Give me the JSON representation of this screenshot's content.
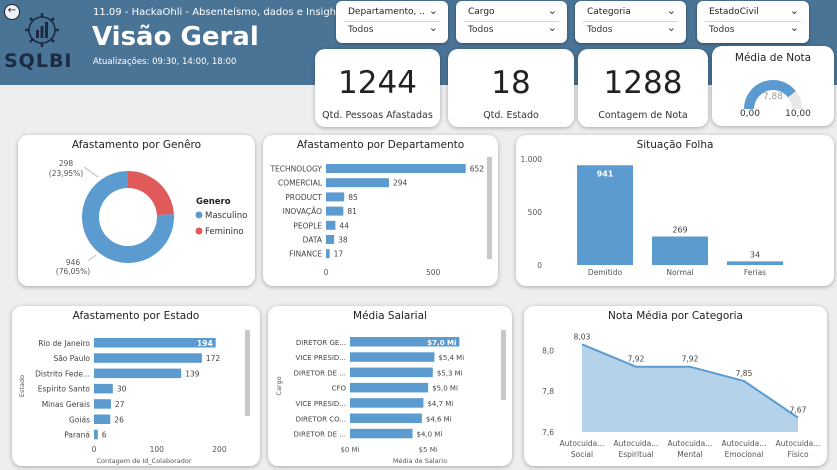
{
  "header": {
    "subtitle": "11.09 - HackaOhli - Absenteísmo, dados e Insights",
    "title": "Visão Geral",
    "updates": "Atualizações: 09:30, 14:00, 18:00",
    "logo_text": "SQLBI",
    "background": "#4a7496"
  },
  "slicers": [
    {
      "label": "Departamento, ...",
      "value": "Todos"
    },
    {
      "label": "Cargo",
      "value": "Todos"
    },
    {
      "label": "Categoria",
      "value": "Todos"
    },
    {
      "label": "EstadoCivil",
      "value": "Todos"
    }
  ],
  "kpis": {
    "pessoas": {
      "value": "1244",
      "label": "Qtd. Pessoas Afastadas"
    },
    "estado": {
      "value": "18",
      "label": "Qtd. Estado"
    },
    "nota": {
      "value": "1288",
      "label": "Contagem de Nota"
    }
  },
  "gauge": {
    "title": "Média de Nota",
    "value": 7.88,
    "min": 0,
    "max": 10,
    "value_label": "7,88",
    "min_label": "0,00",
    "max_label": "10,00"
  },
  "colors": {
    "bar": "#5b9bd0",
    "female": "#e05a5a",
    "area": "#b4d2ea",
    "line": "#5b9bd0",
    "gauge_bg": "#e8e8e8"
  },
  "chart_data": [
    {
      "type": "pie",
      "title": "Afastamento por Genêro",
      "legend_title": "Genero",
      "categories": [
        "Masculino",
        "Feminino"
      ],
      "values": [
        946,
        298
      ],
      "labels": [
        [
          "946",
          "(76,05%)"
        ],
        [
          "298",
          "(23,95%)"
        ]
      ]
    },
    {
      "type": "bar",
      "title": "Afastamento por Departamento",
      "categories": [
        "TECHNOLOGY",
        "COMERCIAL",
        "PRODUCT",
        "INOVAÇÃO",
        "PEOPLE",
        "DATA",
        "FINANCE"
      ],
      "values": [
        652,
        294,
        85,
        81,
        44,
        38,
        17
      ],
      "xticks": [
        "0",
        "500"
      ],
      "xlim": [
        0,
        700
      ]
    },
    {
      "type": "bar",
      "title": "Situação Folha",
      "categories": [
        "Demitido",
        "Normal",
        "Ferias"
      ],
      "values": [
        941,
        269,
        34
      ],
      "yticks": [
        "1.000",
        "500",
        "0"
      ],
      "ylim": [
        0,
        1000
      ]
    },
    {
      "type": "bar",
      "title": "Afastamento por Estado",
      "categories": [
        "Rio de Janeiro",
        "São Paulo",
        "Distrito Fede...",
        "Espírito Santo",
        "Minas Gerais",
        "Goiás",
        "Paraná"
      ],
      "values": [
        194,
        172,
        139,
        30,
        27,
        26,
        6
      ],
      "xticks": [
        "0",
        "100",
        "200"
      ],
      "xlim": [
        0,
        220
      ],
      "xlabel": "Contagem de Id_Colaborador",
      "ylabel": "Estado"
    },
    {
      "type": "bar",
      "title": "Média Salarial",
      "categories": [
        "DIRETOR GE...",
        "VICE PRESID...",
        "DIRETOR DE ...",
        "CFO",
        "VICE PRESID...",
        "DIRETOR CO...",
        "DIRETOR DE ..."
      ],
      "values": [
        7.0,
        5.4,
        5.3,
        5.0,
        4.7,
        4.6,
        4.0
      ],
      "value_labels": [
        "$7,0 Mi",
        "$5,4 Mi",
        "$5,3 Mi",
        "$5,0 Mi",
        "$4,7 Mi",
        "$4,6 Mi",
        "$4,0 Mi"
      ],
      "xticks": [
        "$0 Mi",
        "$5 Mi"
      ],
      "xlim": [
        0,
        8
      ],
      "xlabel": "Média de Salario",
      "ylabel": "Cargo"
    },
    {
      "type": "area",
      "title": "Nota Média por Categoria",
      "categories": [
        [
          "Autocuida...",
          "Social"
        ],
        [
          "Autocuida...",
          "Espiritual"
        ],
        [
          "Autocuida...",
          "Mental"
        ],
        [
          "Autocuida...",
          "Emocional"
        ],
        [
          "Autocuida...",
          "Físico"
        ]
      ],
      "values": [
        8.03,
        7.92,
        7.92,
        7.85,
        7.67
      ],
      "value_labels": [
        "8,03",
        "7,92",
        "7,92",
        "7,85",
        "7,67"
      ],
      "yticks": [
        "8,0",
        "7,8",
        "7,6"
      ],
      "ylim": [
        7.6,
        8.1
      ]
    }
  ]
}
